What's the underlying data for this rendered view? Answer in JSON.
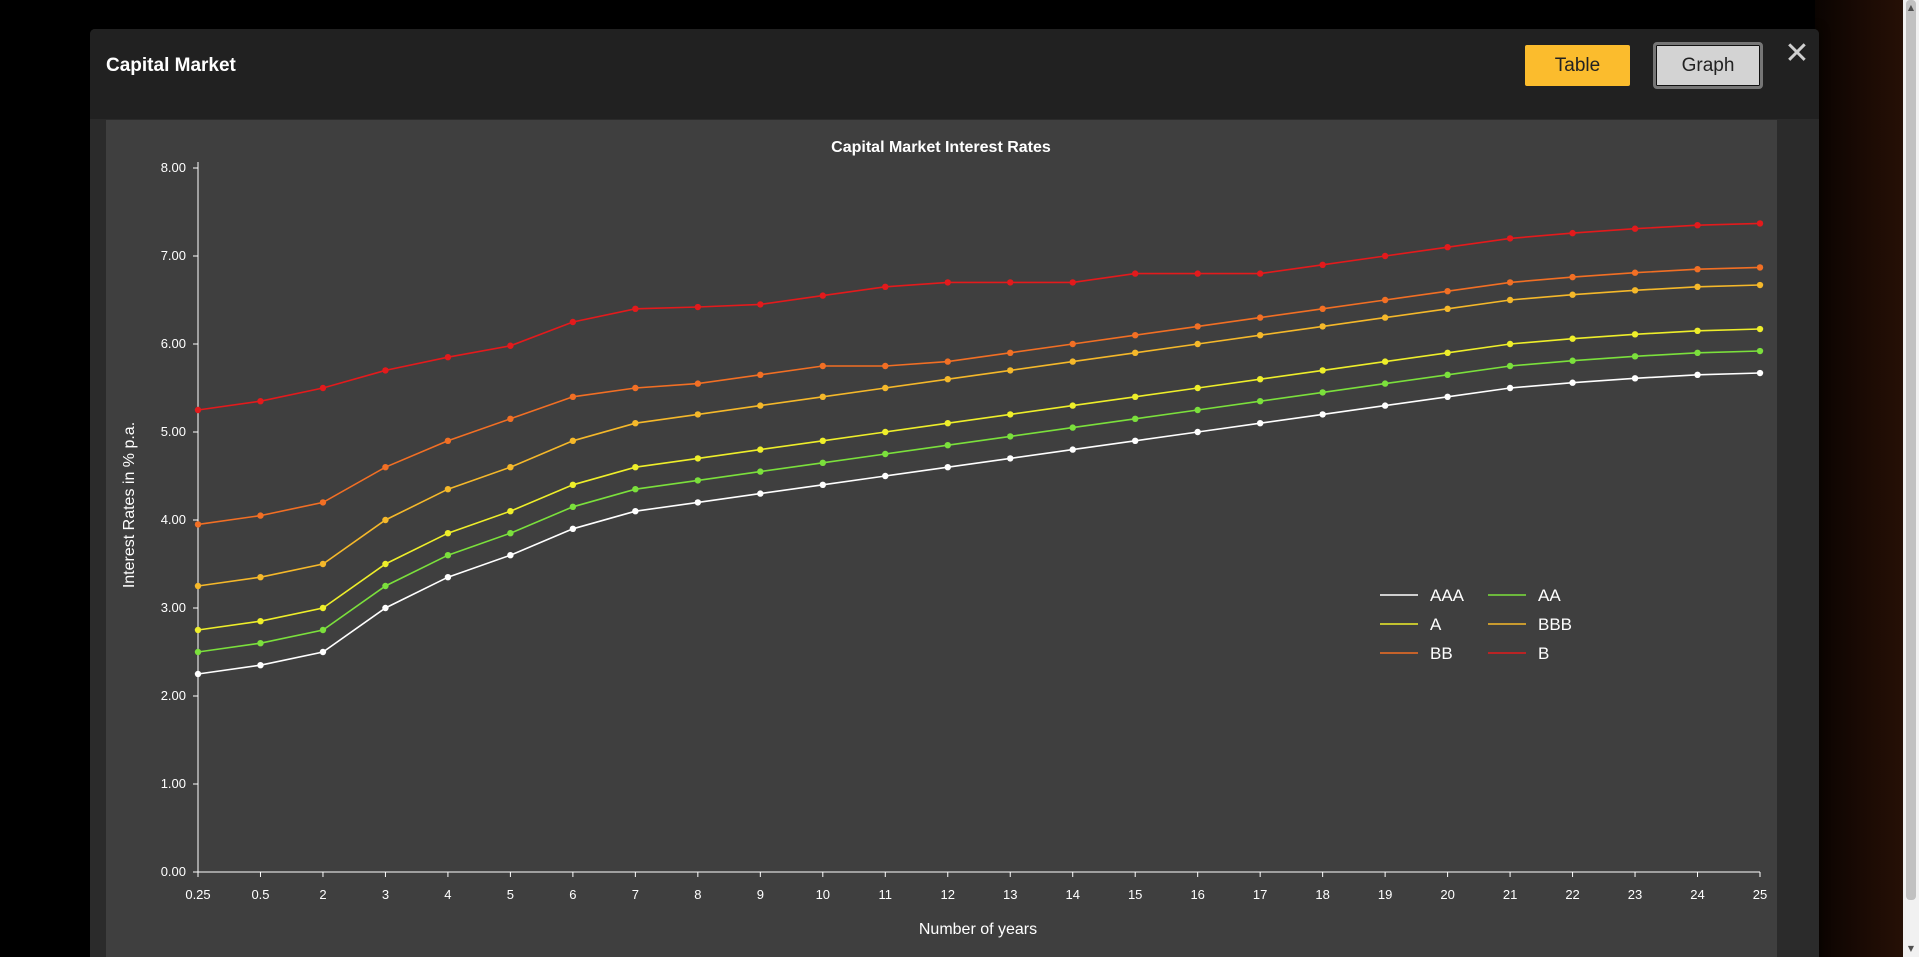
{
  "modal": {
    "title": "Capital Market",
    "table_button": "Table",
    "graph_button": "Graph",
    "close_glyph": "✕"
  },
  "colors": {
    "accent": "#fbbc2d",
    "panel": "#3f3f3f",
    "axis": "#ffffff"
  },
  "chart_data": {
    "type": "line",
    "title": "Capital Market Interest Rates",
    "xlabel": "Number of years",
    "ylabel": "Interest Rates in % p.a.",
    "categories": [
      "0.25",
      "0.5",
      "2",
      "3",
      "4",
      "5",
      "6",
      "7",
      "8",
      "9",
      "10",
      "11",
      "12",
      "13",
      "14",
      "15",
      "16",
      "17",
      "18",
      "19",
      "20",
      "21",
      "22",
      "23",
      "24",
      "25"
    ],
    "ylim": [
      0,
      8
    ],
    "yticks": [
      "0.00",
      "1.00",
      "2.00",
      "3.00",
      "4.00",
      "5.00",
      "6.00",
      "7.00",
      "8.00"
    ],
    "grid": false,
    "legend_position": "right",
    "series": [
      {
        "name": "AAA",
        "color": "#ffffff",
        "values": [
          2.25,
          2.35,
          2.5,
          3.0,
          3.35,
          3.6,
          3.9,
          4.1,
          4.2,
          4.3,
          4.4,
          4.5,
          4.6,
          4.7,
          4.8,
          4.9,
          5.0,
          5.1,
          5.2,
          5.3,
          5.4,
          5.5,
          5.56,
          5.61,
          5.65,
          5.67
        ]
      },
      {
        "name": "AA",
        "color": "#7be03c",
        "values": [
          2.5,
          2.6,
          2.75,
          3.25,
          3.6,
          3.85,
          4.15,
          4.35,
          4.45,
          4.55,
          4.65,
          4.75,
          4.85,
          4.95,
          5.05,
          5.15,
          5.25,
          5.35,
          5.45,
          5.55,
          5.65,
          5.75,
          5.81,
          5.86,
          5.9,
          5.92
        ]
      },
      {
        "name": "A",
        "color": "#eeee2a",
        "values": [
          2.75,
          2.85,
          3.0,
          3.5,
          3.85,
          4.1,
          4.4,
          4.6,
          4.7,
          4.8,
          4.9,
          5.0,
          5.1,
          5.2,
          5.3,
          5.4,
          5.5,
          5.6,
          5.7,
          5.8,
          5.9,
          6.0,
          6.06,
          6.11,
          6.15,
          6.17
        ]
      },
      {
        "name": "BBB",
        "color": "#f5b82a",
        "values": [
          3.25,
          3.35,
          3.5,
          4.0,
          4.35,
          4.6,
          4.9,
          5.1,
          5.2,
          5.3,
          5.4,
          5.5,
          5.6,
          5.7,
          5.8,
          5.9,
          6.0,
          6.1,
          6.2,
          6.3,
          6.4,
          6.5,
          6.56,
          6.61,
          6.65,
          6.67
        ]
      },
      {
        "name": "BB",
        "color": "#f26f24",
        "values": [
          3.95,
          4.05,
          4.2,
          4.6,
          4.9,
          5.15,
          5.4,
          5.5,
          5.55,
          5.65,
          5.75,
          5.75,
          5.8,
          5.9,
          6.0,
          6.1,
          6.2,
          6.3,
          6.4,
          6.5,
          6.6,
          6.7,
          6.76,
          6.81,
          6.85,
          6.87
        ]
      },
      {
        "name": "B",
        "color": "#e31a1c",
        "values": [
          5.25,
          5.35,
          5.5,
          5.7,
          5.85,
          5.98,
          6.25,
          6.4,
          6.42,
          6.45,
          6.55,
          6.65,
          6.7,
          6.7,
          6.7,
          6.8,
          6.8,
          6.8,
          6.9,
          7.0,
          7.1,
          7.2,
          7.26,
          7.31,
          7.35,
          7.37
        ]
      }
    ]
  }
}
